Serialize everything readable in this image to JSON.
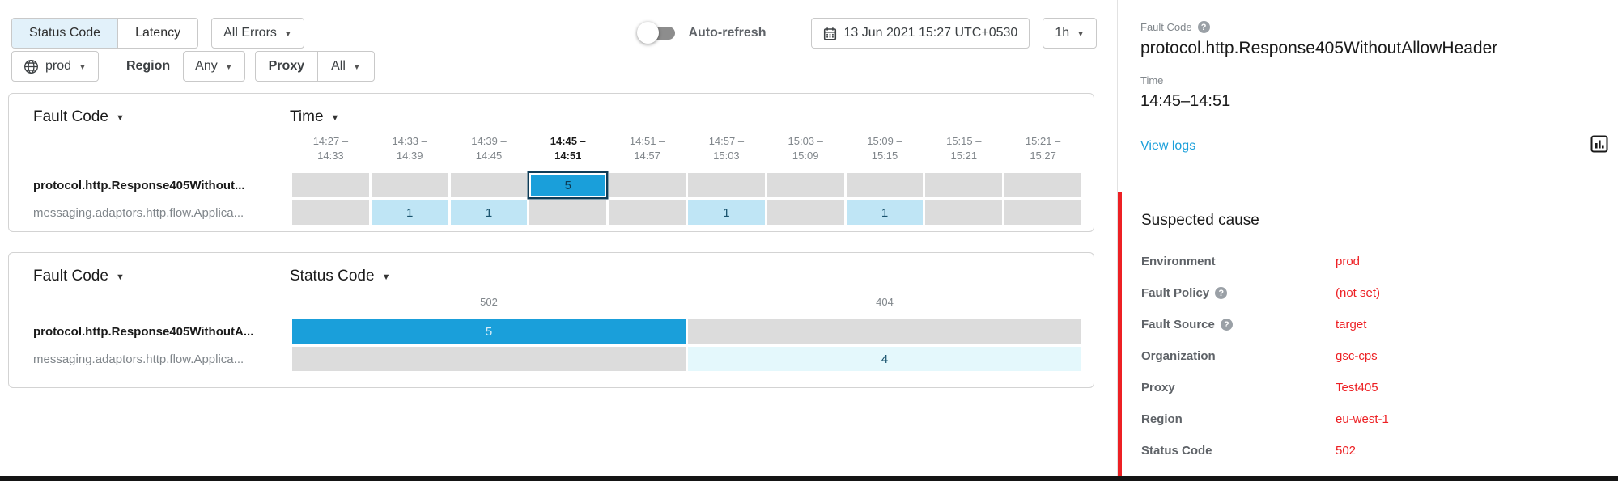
{
  "toolbar": {
    "metric_tabs": [
      {
        "label": "Status Code",
        "selected": true
      },
      {
        "label": "Latency",
        "selected": false
      }
    ],
    "errors_filter": {
      "label": "All Errors"
    },
    "auto_refresh": {
      "label": "Auto-refresh",
      "on": false
    },
    "datetime": {
      "label": "13 Jun 2021 15:27 UTC+0530"
    },
    "range": {
      "label": "1h"
    },
    "environment": {
      "label": "prod"
    },
    "region": {
      "label": "Region",
      "value": "Any"
    },
    "proxy": {
      "label": "Proxy",
      "value": "All"
    }
  },
  "tables": [
    {
      "row_dimension": "Fault Code",
      "col_dimension": "Time",
      "columns": [
        {
          "lines": [
            "14:27 –",
            "14:33"
          ]
        },
        {
          "lines": [
            "14:33 –",
            "14:39"
          ]
        },
        {
          "lines": [
            "14:39 –",
            "14:45"
          ]
        },
        {
          "lines": [
            "14:45 –",
            "14:51"
          ],
          "bold": true
        },
        {
          "lines": [
            "14:51 –",
            "14:57"
          ]
        },
        {
          "lines": [
            "14:57 –",
            "15:03"
          ]
        },
        {
          "lines": [
            "15:03 –",
            "15:09"
          ]
        },
        {
          "lines": [
            "15:09 –",
            "15:15"
          ]
        },
        {
          "lines": [
            "15:15 –",
            "15:21"
          ]
        },
        {
          "lines": [
            "15:21 –",
            "15:27"
          ]
        }
      ],
      "rows": [
        {
          "label": "protocol.http.Response405Without...",
          "bold": true,
          "cells": [
            null,
            null,
            null,
            {
              "value": "5",
              "tone": "dark",
              "selected": true
            },
            null,
            null,
            null,
            null,
            null,
            null
          ]
        },
        {
          "label": "messaging.adaptors.http.flow.Applica...",
          "bold": false,
          "cells": [
            null,
            {
              "value": "1",
              "tone": "light"
            },
            {
              "value": "1",
              "tone": "light"
            },
            null,
            null,
            {
              "value": "1",
              "tone": "light"
            },
            null,
            {
              "value": "1",
              "tone": "light"
            },
            null,
            null
          ]
        }
      ]
    },
    {
      "row_dimension": "Fault Code",
      "col_dimension": "Status Code",
      "columns": [
        {
          "lines": [
            "502"
          ]
        },
        {
          "lines": [
            "404"
          ]
        }
      ],
      "rows": [
        {
          "label": "protocol.http.Response405WithoutA...",
          "bold": true,
          "cells": [
            {
              "value": "5",
              "tone": "dark",
              "text": "light"
            },
            null
          ]
        },
        {
          "label": "messaging.adaptors.http.flow.Applica...",
          "bold": false,
          "cells": [
            null,
            {
              "value": "4",
              "tone": "faint"
            }
          ]
        }
      ]
    }
  ],
  "detail_panel": {
    "fault_code": {
      "label": "Fault Code",
      "value": "protocol.http.Response405WithoutAllowHeader"
    },
    "time": {
      "label": "Time",
      "value": "14:45–14:51"
    },
    "view_logs_label": "View logs",
    "suspected": {
      "title": "Suspected cause",
      "rows": [
        {
          "key": "Environment",
          "value": "prod"
        },
        {
          "key": "Fault Policy",
          "help": true,
          "value": "(not set)"
        },
        {
          "key": "Fault Source",
          "help": true,
          "value": "target"
        },
        {
          "key": "Organization",
          "value": "gsc-cps"
        },
        {
          "key": "Proxy",
          "value": "Test405"
        },
        {
          "key": "Region",
          "value": "eu-west-1"
        },
        {
          "key": "Status Code",
          "value": "502"
        }
      ]
    }
  },
  "colors": {
    "accent_blue": "#1a9fda",
    "light_blue": "#bfe5f5",
    "faint_blue": "#e4f8fc",
    "empty_cell_gray": "#dcdcdc",
    "selected_cell_border": "#0e3c57",
    "alert_red": "#ed2024",
    "link_blue": "#1a9fda",
    "selected_tab_bg": "#e2f1fa"
  }
}
